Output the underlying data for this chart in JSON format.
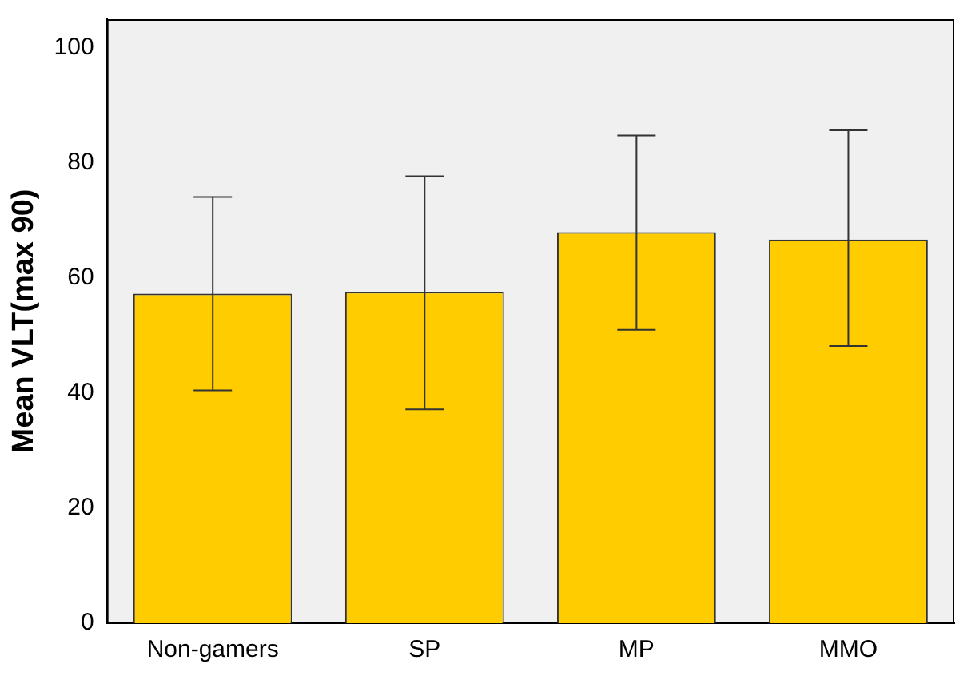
{
  "chart_data": {
    "type": "bar",
    "ylabel": "Mean VLT(max 90)",
    "categories": [
      "Non-gamers",
      "SP",
      "MP",
      "MMO"
    ],
    "values": [
      57.3,
      57.6,
      68.0,
      66.7
    ],
    "errors": [
      [
        40.5,
        74.1
      ],
      [
        37.2,
        77.7
      ],
      [
        51.0,
        84.8
      ],
      [
        48.2,
        85.7
      ]
    ],
    "color": "#ffcc00",
    "ylim": [
      0,
      105
    ],
    "yticks": [
      0,
      20,
      40,
      60,
      80,
      100
    ],
    "grid": false,
    "legend": false
  }
}
